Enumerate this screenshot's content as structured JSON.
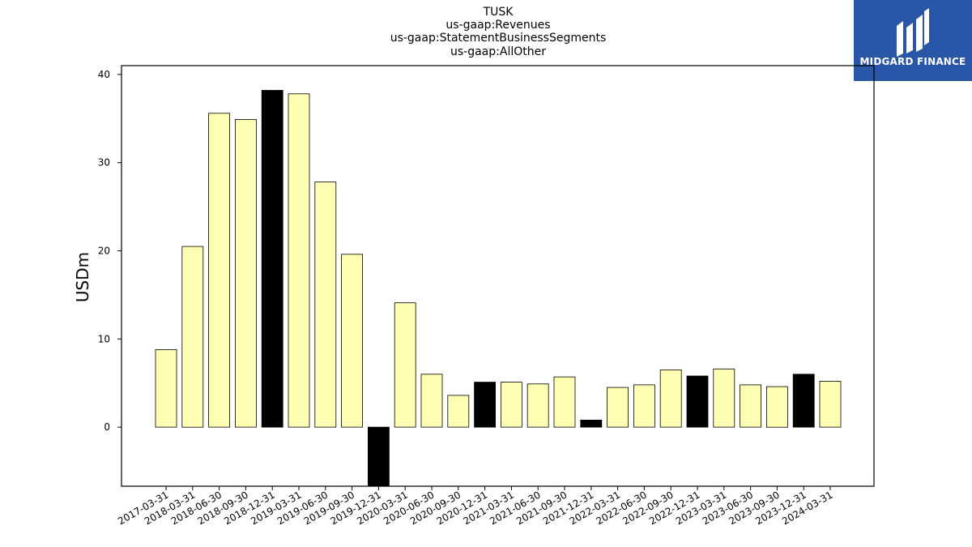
{
  "title_lines": [
    "TUSK",
    "us-gaap:Revenues",
    "us-gaap:StatementBusinessSegments",
    "us-gaap:AllOther"
  ],
  "logo": {
    "text": "MIDGARD FINANCE",
    "background": "#2a56a8"
  },
  "chart_data": {
    "type": "bar",
    "title": "TUSK\nus-gaap:Revenues\nus-gaap:StatementBusinessSegments\nus-gaap:AllOther",
    "xlabel": "",
    "ylabel": "USDm",
    "ylim": [
      -6.7,
      41
    ],
    "yticks": [
      0,
      10,
      20,
      30,
      40
    ],
    "grid": false,
    "colors": {
      "quarter": "#ffffb3",
      "year_end": "#000000"
    },
    "categories": [
      "2017-03-31",
      "2018-03-31",
      "2018-06-30",
      "2018-09-30",
      "2018-12-31",
      "2019-03-31",
      "2019-06-30",
      "2019-09-30",
      "2019-12-31",
      "2020-03-31",
      "2020-06-30",
      "2020-09-30",
      "2020-12-31",
      "2021-03-31",
      "2021-06-30",
      "2021-09-30",
      "2021-12-31",
      "2022-03-31",
      "2022-06-30",
      "2022-09-30",
      "2022-12-31",
      "2023-03-31",
      "2023-06-30",
      "2023-09-30",
      "2023-12-31",
      "2024-03-31"
    ],
    "values": [
      8.8,
      20.5,
      35.6,
      34.9,
      38.2,
      37.8,
      27.8,
      19.6,
      -6.7,
      14.1,
      6.0,
      3.6,
      5.1,
      5.1,
      4.9,
      5.7,
      0.8,
      4.5,
      4.8,
      6.5,
      5.8,
      6.6,
      4.8,
      4.6,
      6.0,
      5.2
    ],
    "highlight": [
      "2018-12-31",
      "2019-12-31",
      "2020-12-31",
      "2021-12-31",
      "2022-12-31",
      "2023-12-31"
    ]
  }
}
